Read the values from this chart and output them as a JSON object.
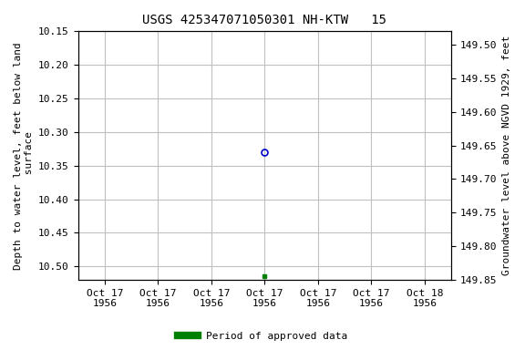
{
  "title": "USGS 425347071050301 NH-KTW   15",
  "ylabel_left": "Depth to water level, feet below land\n surface",
  "ylabel_right": "Groundwater level above NGVD 1929, feet",
  "ylim_left": [
    10.52,
    10.15
  ],
  "ylim_right": [
    149.48,
    149.85
  ],
  "left_ticks": [
    10.15,
    10.2,
    10.25,
    10.3,
    10.35,
    10.4,
    10.45,
    10.5
  ],
  "right_ticks": [
    149.85,
    149.8,
    149.75,
    149.7,
    149.65,
    149.6,
    149.55,
    149.5
  ],
  "point_x_num": 3.5,
  "point_y_depth": 10.33,
  "point_color": "#0000cc",
  "point_marker": "o",
  "point_marker_size": 5,
  "green_point_x_num": 3.5,
  "green_point_y_depth": 10.515,
  "green_color": "#008000",
  "green_marker": "s",
  "green_marker_size": 3,
  "xlim": [
    0,
    7
  ],
  "xtick_positions": [
    0.5,
    1.5,
    2.5,
    3.5,
    4.5,
    5.5,
    6.5
  ],
  "xtick_labels": [
    "Oct 17\n1956",
    "Oct 17\n1956",
    "Oct 17\n1956",
    "Oct 17\n1956",
    "Oct 17\n1956",
    "Oct 17\n1956",
    "Oct 18\n1956"
  ],
  "legend_label": "Period of approved data",
  "legend_color": "#008000",
  "background_color": "#ffffff",
  "grid_color": "#c0c0c0",
  "title_fontsize": 10,
  "axis_label_fontsize": 8,
  "tick_fontsize": 8
}
